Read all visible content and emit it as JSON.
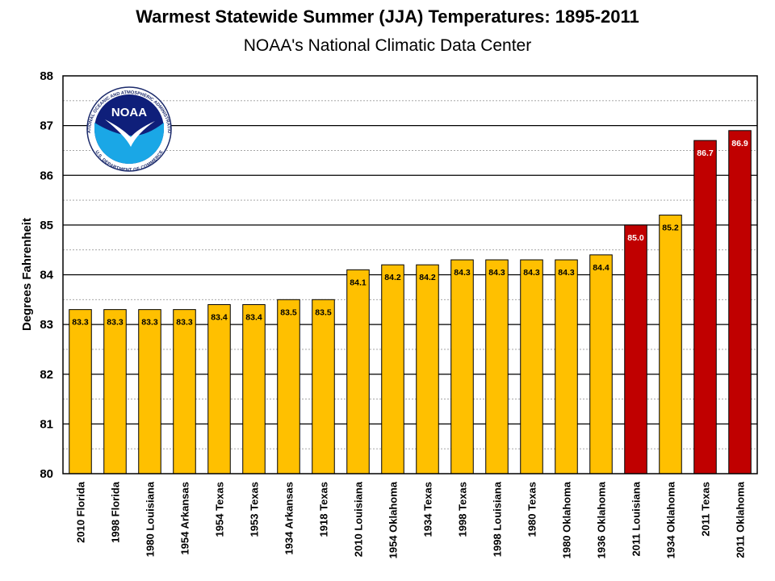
{
  "header": {
    "title": "Warmest Statewide Summer (JJA) Temperatures: 1895-2011",
    "subtitle": "NOAA's National Climatic Data Center"
  },
  "logo": {
    "text": "NOAA",
    "ring_text": "NATIONAL OCEANIC AND ATMOSPHERIC ADMINISTRATION",
    "ring_text_bottom": "U.S. DEPARTMENT OF COMMERCE"
  },
  "colors": {
    "bar_normal": "#FFC000",
    "bar_highlight": "#C00000",
    "label_dark": "#000000",
    "label_light": "#FFFFFF"
  },
  "chart_data": {
    "type": "bar",
    "title": "Warmest Statewide Summer (JJA) Temperatures: 1895-2011",
    "subtitle": "NOAA's National Climatic Data Center",
    "xlabel": "",
    "ylabel": "Degrees Fahrenheit",
    "ylim": [
      80,
      88
    ],
    "yticks": [
      80,
      81,
      82,
      83,
      84,
      85,
      86,
      87,
      88
    ],
    "minor_grid_step": 0.5,
    "grid": true,
    "categories": [
      "2010 Florida",
      "1998 Florida",
      "1980 Louisiana",
      "1954 Arkansas",
      "1954 Texas",
      "1953 Texas",
      "1934 Arkansas",
      "1918 Texas",
      "2010 Louisiana",
      "1954 Oklahoma",
      "1934 Texas",
      "1998 Texas",
      "1998 Louisiana",
      "1980 Texas",
      "1980 Oklahoma",
      "1936 Oklahoma",
      "2011 Louisiana",
      "1934 Oklahoma",
      "2011 Texas",
      "2011 Oklahoma"
    ],
    "values": [
      83.3,
      83.3,
      83.3,
      83.3,
      83.4,
      83.4,
      83.5,
      83.5,
      84.1,
      84.2,
      84.2,
      84.3,
      84.3,
      84.3,
      84.3,
      84.4,
      85.0,
      85.2,
      86.7,
      86.9
    ],
    "data_labels": [
      "83.3",
      "83.3",
      "83.3",
      "83.3",
      "83.4",
      "83.4",
      "83.5",
      "83.5",
      "84.1",
      "84.2",
      "84.2",
      "84.3",
      "84.3",
      "84.3",
      "84.3",
      "84.4",
      "85.0",
      "85.2",
      "86.7",
      "86.9"
    ],
    "highlighted": [
      false,
      false,
      false,
      false,
      false,
      false,
      false,
      false,
      false,
      false,
      false,
      false,
      false,
      false,
      false,
      false,
      true,
      false,
      true,
      true
    ]
  }
}
